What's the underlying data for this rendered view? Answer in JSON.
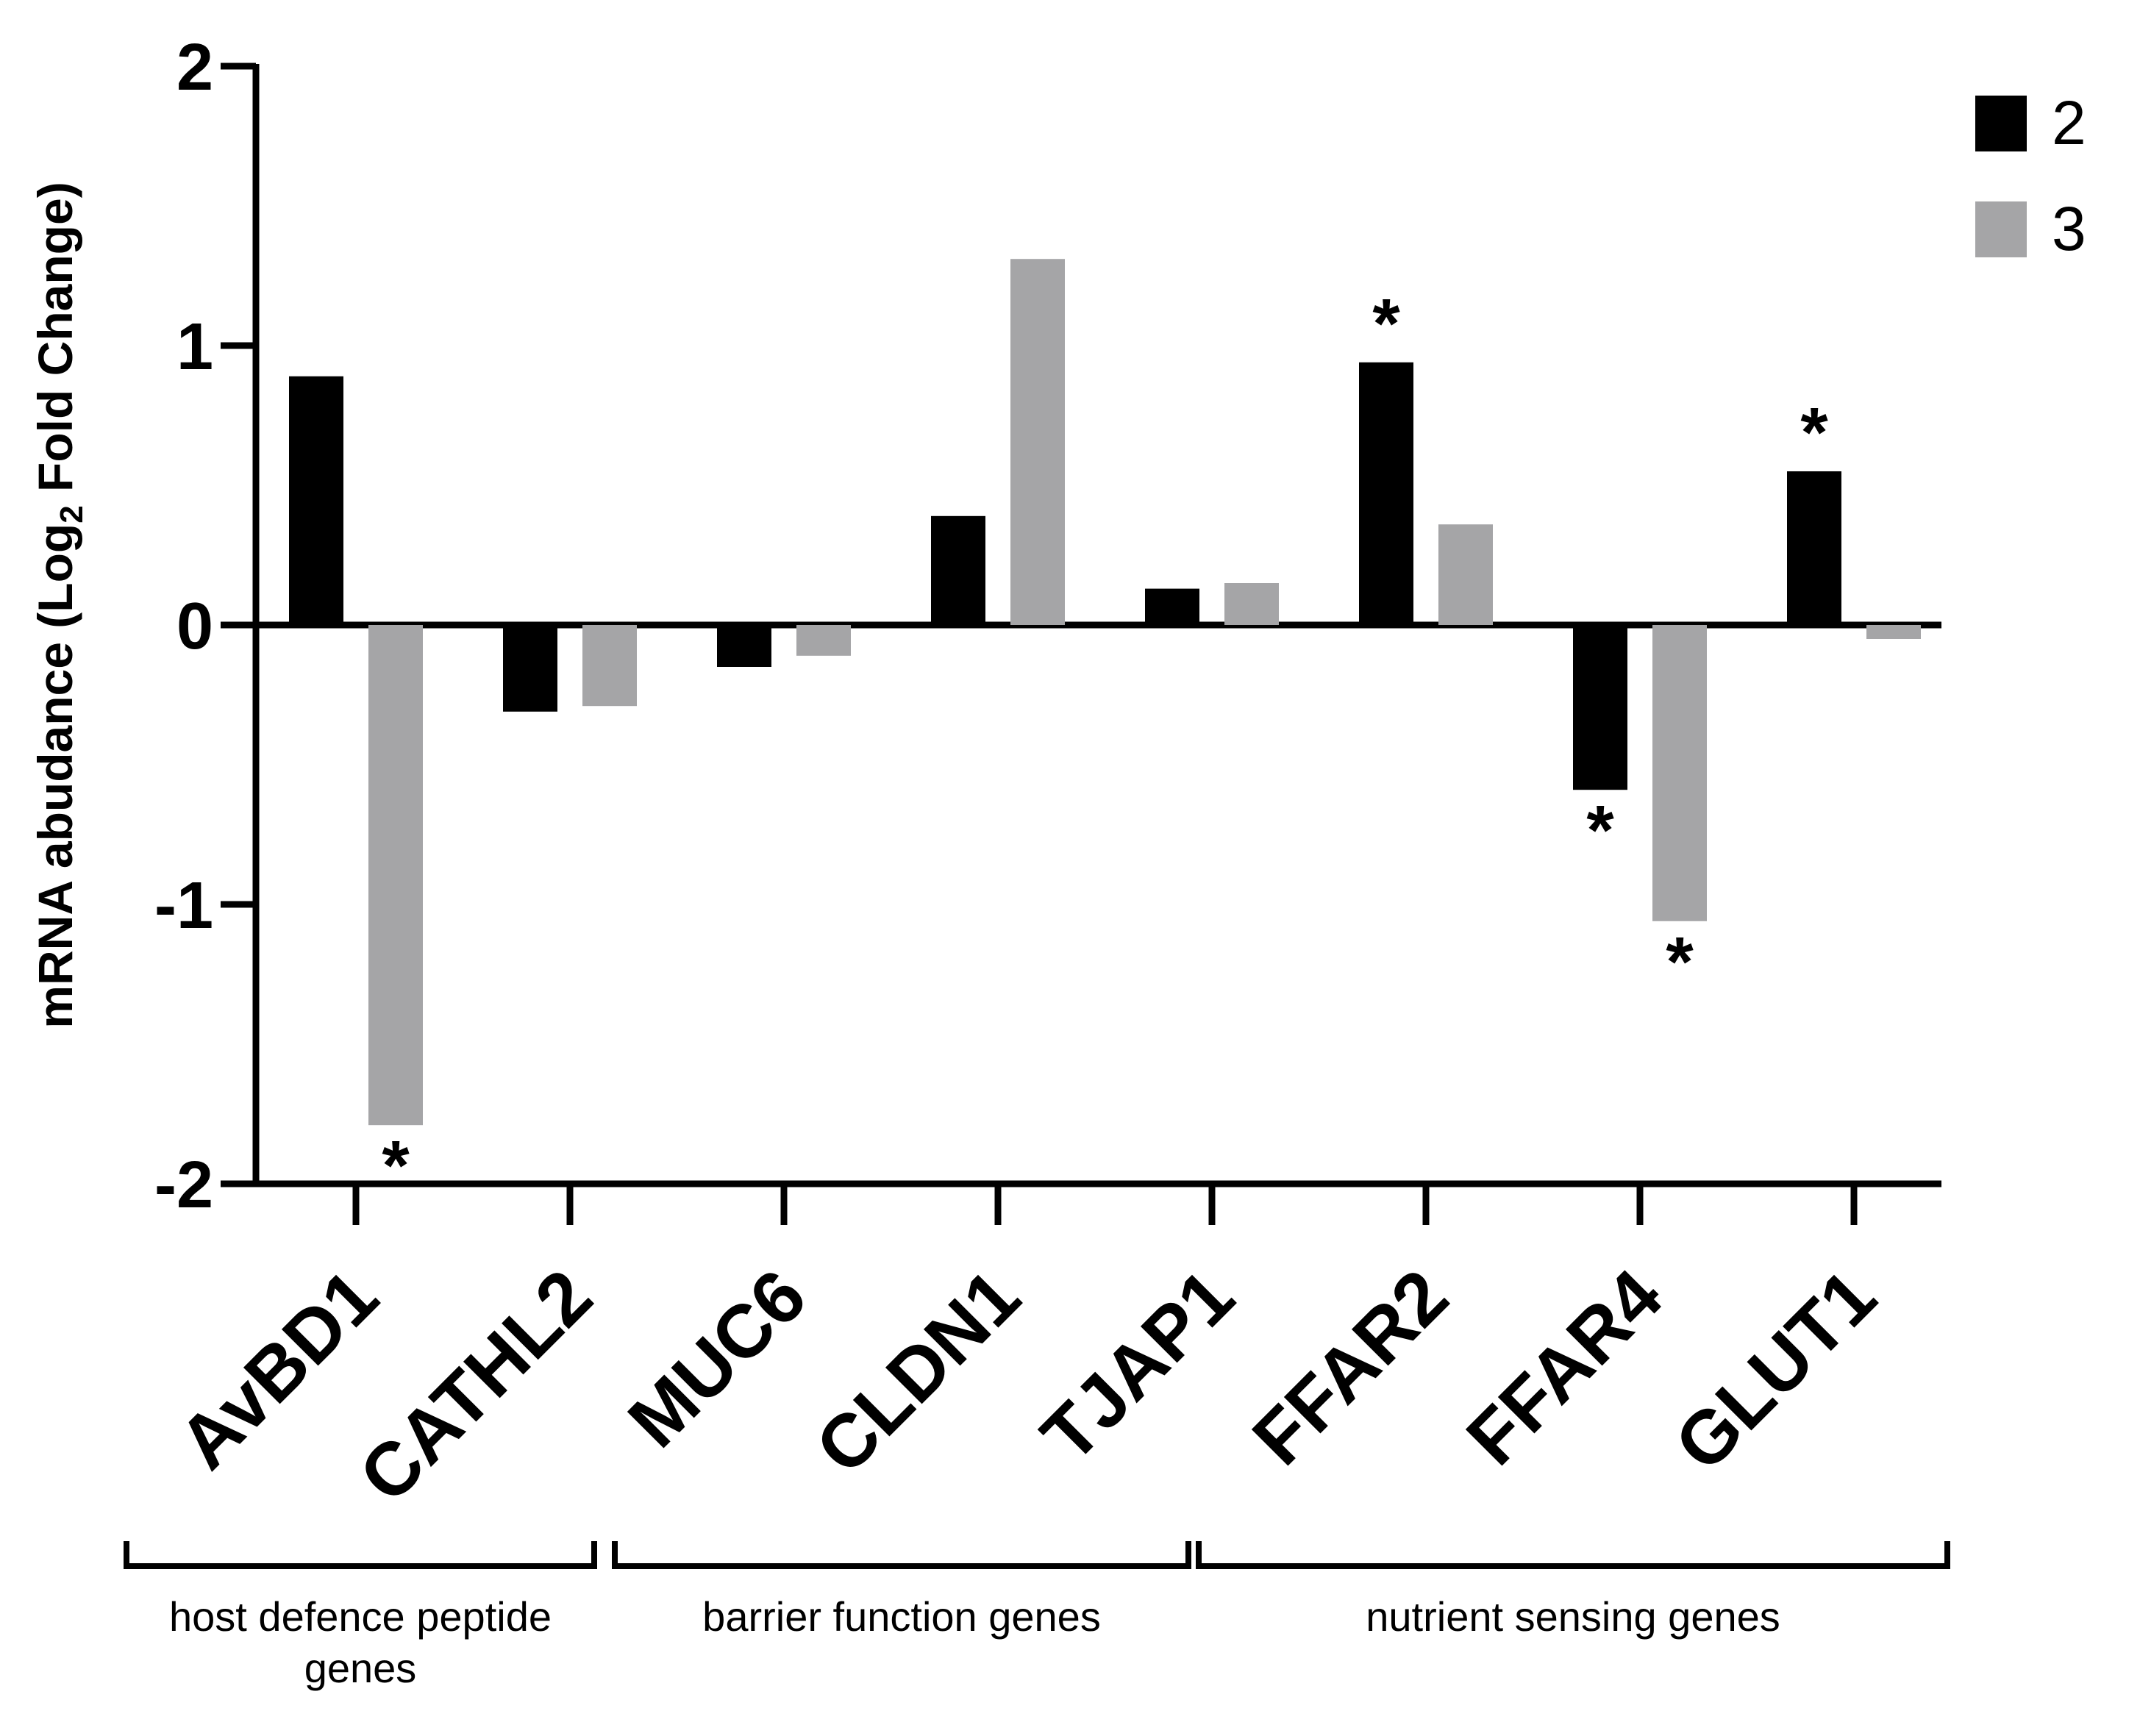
{
  "chart_data": {
    "type": "bar",
    "title": "",
    "xlabel": "",
    "ylabel": "mRNA abudance (Log",
    "ylabel_subscript": "2",
    "ylabel_suffix": " Fold Change)",
    "ylim": [
      -2,
      2
    ],
    "yticks": [
      "2",
      "1",
      "0",
      "-1",
      "-2"
    ],
    "categories": [
      "AvBD1",
      "CATHL2",
      "MUC6",
      "CLDN1",
      "TJAP1",
      "FFAR2",
      "FFAR4",
      "GLUT1"
    ],
    "series": [
      {
        "name": "2",
        "color": "#000000",
        "values": [
          0.89,
          -0.31,
          -0.15,
          0.39,
          0.13,
          0.94,
          -0.59,
          0.55
        ],
        "significant": [
          false,
          false,
          false,
          false,
          false,
          true,
          true,
          true
        ]
      },
      {
        "name": "3",
        "color": "#a5a5a7",
        "values": [
          -1.79,
          -0.29,
          -0.11,
          1.31,
          0.15,
          0.36,
          -1.06,
          -0.05
        ],
        "significant": [
          true,
          false,
          false,
          false,
          false,
          false,
          true,
          false
        ]
      }
    ],
    "significance_marker": "*",
    "legend_position": "top-right",
    "groups": [
      {
        "label_lines": [
          "host defence peptide",
          "genes"
        ],
        "categories": [
          "AvBD1",
          "CATHL2"
        ]
      },
      {
        "label_lines": [
          "barrier function genes"
        ],
        "categories": [
          "MUC6",
          "CLDN1",
          "TJAP1"
        ]
      },
      {
        "label_lines": [
          "nutrient sensing genes"
        ],
        "categories": [
          "FFAR2",
          "FFAR4",
          "GLUT1"
        ]
      }
    ]
  }
}
